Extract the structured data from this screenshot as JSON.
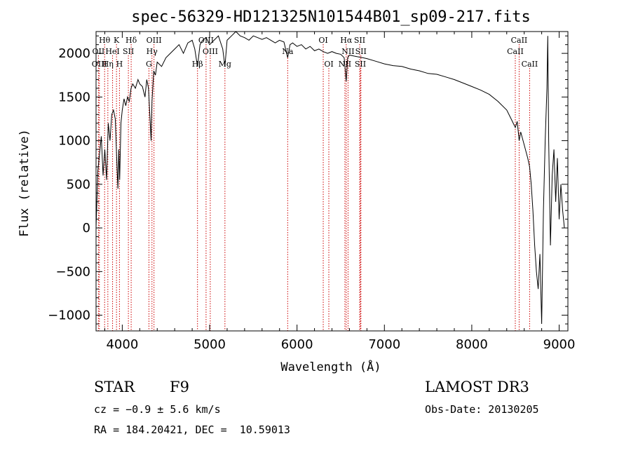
{
  "chart_data": {
    "type": "line",
    "title": "spec-56329-HD121325N101544B01_sp09-217.fits",
    "xlabel": "Wavelength (Å)",
    "ylabel": "Flux (relative)",
    "xlim": [
      3700,
      9100
    ],
    "ylim": [
      -1180,
      2250
    ],
    "xticks": [
      4000,
      5000,
      6000,
      7000,
      8000,
      9000
    ],
    "yticks": [
      -1000,
      -500,
      0,
      500,
      1000,
      1500,
      2000
    ],
    "grid": false,
    "series": [
      {
        "x": [
          3700,
          3720,
          3740,
          3760,
          3780,
          3800,
          3820,
          3840,
          3860,
          3880,
          3900,
          3920,
          3940,
          3950,
          3960,
          3970,
          3985,
          4000,
          4020,
          4040,
          4060,
          4080,
          4100,
          4120,
          4150,
          4180,
          4200,
          4230,
          4260,
          4280,
          4300,
          4320,
          4330,
          4340,
          4360,
          4380,
          4400,
          4450,
          4500,
          4550,
          4600,
          4650,
          4700,
          4750,
          4800,
          4830,
          4861,
          4890,
          4920,
          4960,
          5000,
          5050,
          5100,
          5150,
          5175,
          5200,
          5250,
          5300,
          5350,
          5400,
          5450,
          5500,
          5550,
          5600,
          5650,
          5700,
          5750,
          5800,
          5850,
          5893,
          5920,
          5950,
          6000,
          6050,
          6100,
          6150,
          6200,
          6250,
          6300,
          6350,
          6400,
          6450,
          6500,
          6540,
          6563,
          6580,
          6600,
          6650,
          6700,
          6750,
          6800,
          6900,
          7000,
          7100,
          7200,
          7300,
          7400,
          7500,
          7600,
          7700,
          7800,
          7900,
          8000,
          8100,
          8200,
          8300,
          8400,
          8450,
          8498,
          8520,
          8542,
          8560,
          8600,
          8640,
          8662,
          8680,
          8700,
          8720,
          8740,
          8760,
          8780,
          8800,
          8820,
          8840,
          8860,
          8870,
          8880,
          8900,
          8920,
          8940,
          8960,
          8980,
          9000,
          9020,
          9040,
          9060
        ],
        "y": [
          0,
          650,
          850,
          1050,
          600,
          900,
          550,
          1200,
          1000,
          1300,
          1350,
          1250,
          700,
          450,
          900,
          550,
          1200,
          1350,
          1480,
          1400,
          1500,
          1450,
          1600,
          1650,
          1600,
          1700,
          1650,
          1620,
          1500,
          1700,
          1600,
          1200,
          1000,
          1450,
          1800,
          1750,
          1900,
          1850,
          1950,
          2000,
          2050,
          2100,
          2000,
          2120,
          2150,
          2050,
          1850,
          2100,
          2150,
          2180,
          2100,
          2150,
          2200,
          2050,
          1850,
          2150,
          2200,
          2250,
          2200,
          2180,
          2150,
          2200,
          2180,
          2160,
          2180,
          2150,
          2120,
          2150,
          2130,
          1950,
          2100,
          2120,
          2080,
          2100,
          2050,
          2080,
          2030,
          2050,
          2020,
          2000,
          2020,
          2000,
          1990,
          1950,
          1680,
          1950,
          1980,
          1970,
          1960,
          1950,
          1940,
          1910,
          1880,
          1860,
          1850,
          1820,
          1800,
          1770,
          1760,
          1730,
          1700,
          1660,
          1620,
          1580,
          1530,
          1450,
          1350,
          1250,
          1150,
          1220,
          1000,
          1100,
          950,
          800,
          700,
          500,
          200,
          -200,
          -500,
          -700,
          -300,
          -1100,
          200,
          1000,
          1600,
          2200,
          1000,
          -200,
          600,
          900,
          300,
          800,
          100,
          500,
          200,
          0
        ],
        "color": "#000000"
      }
    ],
    "spectral_lines": [
      {
        "label": "Hθ",
        "x": 3798,
        "row": 0
      },
      {
        "label": "OII",
        "x": 3727,
        "row": 1
      },
      {
        "label": "OIII",
        "x": 3738,
        "row": 2
      },
      {
        "label": "K",
        "x": 3934,
        "row": 0
      },
      {
        "label": "HeI",
        "x": 3889,
        "row": 1
      },
      {
        "label": "Hη",
        "x": 3835,
        "row": 2
      },
      {
        "label": "Hδ",
        "x": 4102,
        "row": 0
      },
      {
        "label": "SII",
        "x": 4070,
        "row": 1
      },
      {
        "label": "H",
        "x": 3968,
        "row": 2
      },
      {
        "label": "OIII",
        "x": 4363,
        "row": 0
      },
      {
        "label": "Hγ",
        "x": 4340,
        "row": 1
      },
      {
        "label": "G",
        "x": 4305,
        "row": 2
      },
      {
        "label": "OIII",
        "x": 4959,
        "row": 0
      },
      {
        "label": "OIII",
        "x": 5007,
        "row": 1
      },
      {
        "label": "Hβ",
        "x": 4861,
        "row": 2
      },
      {
        "label": "Mg",
        "x": 5175,
        "row": 2
      },
      {
        "label": "Na",
        "x": 5893,
        "row": 1
      },
      {
        "label": "OI",
        "x": 6300,
        "row": 0
      },
      {
        "label": "OI",
        "x": 6364,
        "row": 2
      },
      {
        "label": "Hα",
        "x": 6563,
        "row": 0
      },
      {
        "label": "SII",
        "x": 6717,
        "row": 0
      },
      {
        "label": "NII",
        "x": 6584,
        "row": 1
      },
      {
        "label": "SII",
        "x": 6731,
        "row": 1
      },
      {
        "label": "NII",
        "x": 6548,
        "row": 2
      },
      {
        "label": "SII",
        "x": 6725,
        "row": 2
      },
      {
        "label": "CaII",
        "x": 8542,
        "row": 0
      },
      {
        "label": "CaII",
        "x": 8498,
        "row": 1
      },
      {
        "label": "CaII",
        "x": 8662,
        "row": 2
      }
    ],
    "line_color": "#cc0000"
  },
  "info": {
    "class": "STAR",
    "subclass": "F9",
    "cz": "cz = −0.9 ± 5.6 km/s",
    "radec": "RA = 184.20421, DEC =  10.59013",
    "survey": "LAMOST DR3",
    "obsdate": "Obs-Date: 20130205"
  }
}
